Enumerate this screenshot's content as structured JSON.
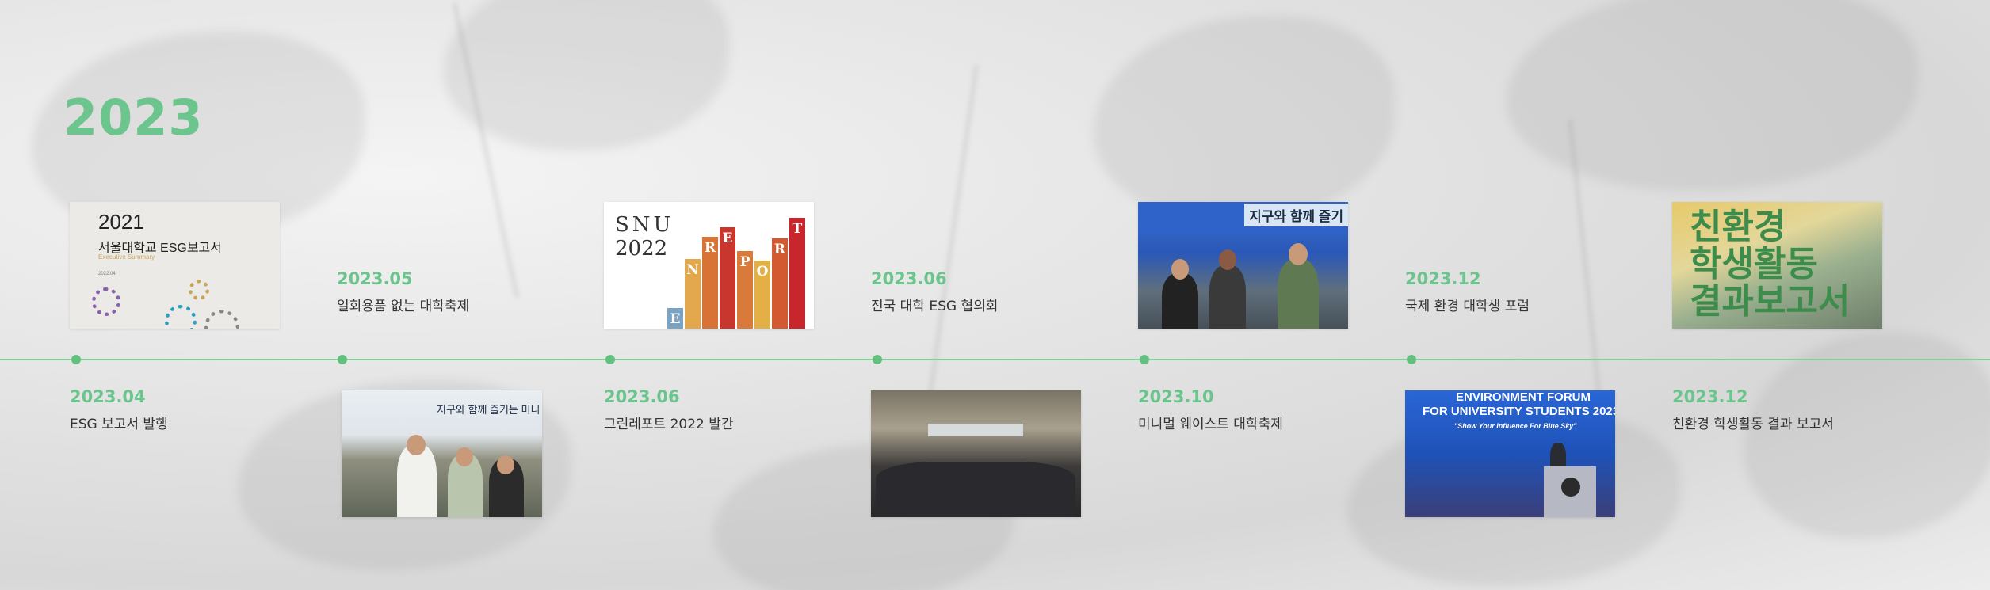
{
  "year": "2023",
  "thumbnails": {
    "report2021": {
      "line1": "2021",
      "line2": "서울대학교 ESG보고서",
      "line3": "Executive Summary",
      "line4": "2022.04"
    },
    "greenReport": {
      "snu": "SNU",
      "year": "2022",
      "letters": [
        "E",
        "N",
        "R",
        "E",
        "P",
        "O",
        "R",
        "T"
      ]
    },
    "tentPhoto1": {
      "banner": "지구와 함께 즐기"
    },
    "tentPhoto2": {
      "banner": "지구와 함께 즐기는 미니"
    },
    "forumPhoto": {
      "line1": "ENVIRONMENT FORUM",
      "line2": "FOR UNIVERSITY STUDENTS 2023",
      "line3": "\"Show Your Influence For Blue Sky\""
    },
    "activityCover": {
      "text": "친환경\n학생활동\n결과보고서"
    }
  },
  "events": [
    {
      "date": "2023.04",
      "label": "ESG 보고서 발행"
    },
    {
      "date": "2023.05",
      "label": "일회용품 없는 대학축제"
    },
    {
      "date": "2023.06",
      "label": "그린레포트 2022 발간"
    },
    {
      "date": "2023.06",
      "label": "전국 대학 ESG 협의회"
    },
    {
      "date": "2023.10",
      "label": "미니멀 웨이스트 대학축제"
    },
    {
      "date": "2023.12",
      "label": "국제 환경 대학생 포럼"
    },
    {
      "date": "2023.12",
      "label": "친환경 학생활동 결과 보고서"
    }
  ],
  "colors": {
    "accent": "#6cc58d",
    "axis": "#7fcf96",
    "text": "#333333"
  }
}
